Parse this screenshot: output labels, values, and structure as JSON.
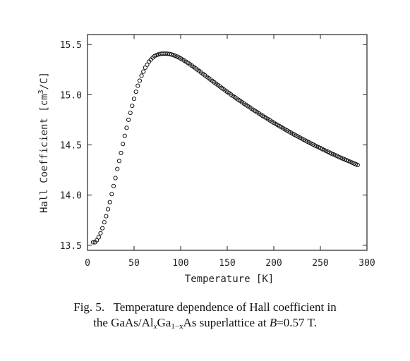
{
  "chart_data": {
    "type": "scatter",
    "xlabel": "Temperature [K]",
    "ylabel_main": "Hall Coefficient [cm",
    "ylabel_sup": "3",
    "ylabel_end": "/C]",
    "xlim": [
      0,
      300
    ],
    "ylim": [
      13.45,
      15.6
    ],
    "xticks": [
      0,
      50,
      100,
      150,
      200,
      250,
      300
    ],
    "yticks": [
      13.5,
      14.0,
      14.5,
      15.0,
      15.5
    ],
    "xtick_labels": [
      "0",
      "50",
      "100",
      "150",
      "200",
      "250",
      "300"
    ],
    "ytick_labels": [
      "13.5",
      "14.0",
      "14.5",
      "15.0",
      "15.5"
    ],
    "grid": false,
    "marker": "open-circle",
    "x": [
      6,
      8,
      10,
      12,
      14,
      16,
      18,
      20,
      22,
      24,
      26,
      28,
      30,
      32,
      34,
      36,
      38,
      40,
      42,
      44,
      46,
      48,
      50,
      52,
      54,
      56,
      58,
      60,
      62,
      64,
      66,
      68,
      70,
      72,
      74,
      76,
      78,
      80,
      82,
      84,
      86,
      88,
      90,
      92,
      94,
      96,
      98,
      100,
      102,
      104,
      106,
      108,
      110,
      112,
      114,
      116,
      118,
      120,
      122,
      124,
      126,
      128,
      130,
      132,
      134,
      136,
      138,
      140,
      142,
      144,
      146,
      148,
      150,
      152,
      154,
      156,
      158,
      160,
      162,
      164,
      166,
      168,
      170,
      172,
      174,
      176,
      178,
      180,
      182,
      184,
      186,
      188,
      190,
      192,
      194,
      196,
      198,
      200,
      202,
      204,
      206,
      208,
      210,
      212,
      214,
      216,
      218,
      220,
      222,
      224,
      226,
      228,
      230,
      232,
      234,
      236,
      238,
      240,
      242,
      244,
      246,
      248,
      250,
      252,
      254,
      256,
      258,
      260,
      262,
      264,
      266,
      268,
      270,
      272,
      274,
      276,
      278,
      280,
      282,
      284,
      286,
      288,
      290
    ],
    "y": [
      13.53,
      13.53,
      13.55,
      13.58,
      13.62,
      13.67,
      13.73,
      13.79,
      13.86,
      13.93,
      14.01,
      14.09,
      14.17,
      14.26,
      14.34,
      14.42,
      14.51,
      14.59,
      14.67,
      14.75,
      14.82,
      14.89,
      14.96,
      15.03,
      15.09,
      15.14,
      15.19,
      15.23,
      15.27,
      15.3,
      15.33,
      15.35,
      15.37,
      15.385,
      15.395,
      15.402,
      15.407,
      15.41,
      15.41,
      15.41,
      15.409,
      15.406,
      15.402,
      15.396,
      15.389,
      15.381,
      15.372,
      15.362,
      15.351,
      15.34,
      15.328,
      15.316,
      15.303,
      15.29,
      15.277,
      15.263,
      15.25,
      15.236,
      15.222,
      15.208,
      15.194,
      15.18,
      15.166,
      15.152,
      15.138,
      15.124,
      15.11,
      15.097,
      15.083,
      15.069,
      15.056,
      15.042,
      15.029,
      15.016,
      15.002,
      14.989,
      14.976,
      14.963,
      14.95,
      14.938,
      14.925,
      14.912,
      14.9,
      14.887,
      14.875,
      14.862,
      14.85,
      14.838,
      14.826,
      14.814,
      14.802,
      14.79,
      14.778,
      14.767,
      14.755,
      14.744,
      14.732,
      14.721,
      14.71,
      14.699,
      14.688,
      14.677,
      14.666,
      14.655,
      14.645,
      14.634,
      14.624,
      14.613,
      14.603,
      14.593,
      14.583,
      14.573,
      14.563,
      14.553,
      14.543,
      14.533,
      14.524,
      14.514,
      14.505,
      14.495,
      14.486,
      14.477,
      14.468,
      14.459,
      14.45,
      14.441,
      14.432,
      14.423,
      14.414,
      14.406,
      14.397,
      14.389,
      14.38,
      14.372,
      14.364,
      14.356,
      14.348,
      14.34,
      14.332,
      14.324,
      14.316,
      14.308,
      14.3
    ]
  },
  "caption": {
    "line1": "Fig. 5.   Temperature dependence of Hall coefficient in",
    "line2_a": "the GaAs/Al",
    "line2_x1": "x",
    "line2_b": "Ga",
    "line2_sub": "1−x",
    "line2_c": "As superlattice at ",
    "line2_B": "B",
    "line2_d": "=0.57 T."
  }
}
